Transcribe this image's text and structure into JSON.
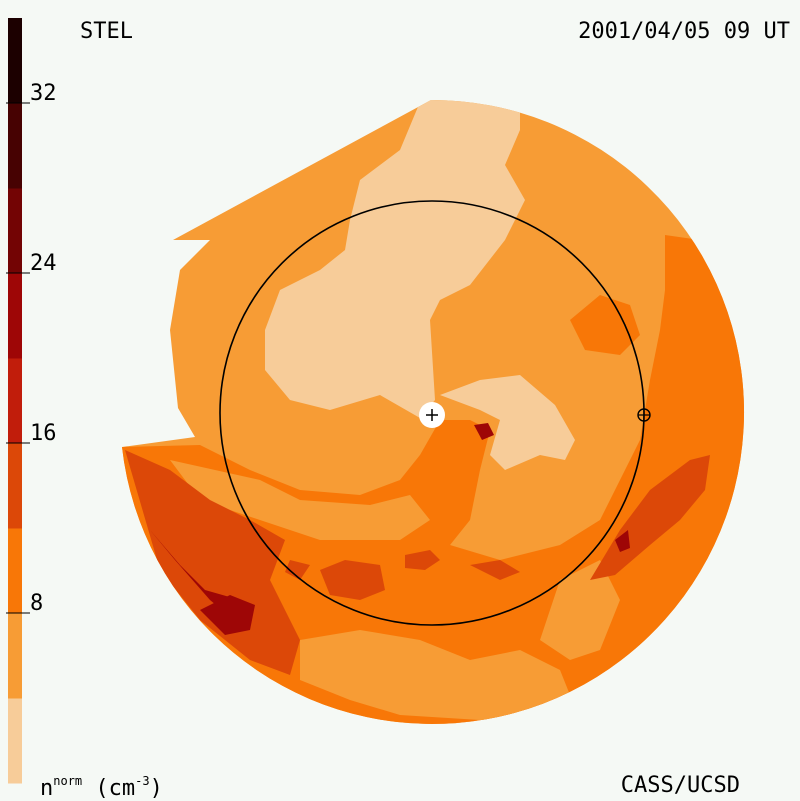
{
  "header": {
    "instrument": "STEL",
    "timestamp": "2001/04/05 09 UT"
  },
  "footer": {
    "credit": "CASS/UCSD"
  },
  "colorbar": {
    "quantity": "n",
    "quantity_superscript": "norm",
    "unit": "(cm",
    "unit_exponent": "-3",
    "unit_close": ")",
    "min": 0,
    "max": 36,
    "level_step": 4,
    "tick_values": [
      8,
      16,
      24,
      32
    ],
    "tick_labels": [
      "8",
      "16",
      "24",
      "32"
    ],
    "level_colors": [
      "#f7cc99",
      "#f79c35",
      "#f87707",
      "#dc4808",
      "#c11d0b",
      "#9e0606",
      "#730404",
      "#470202",
      "#1c0000"
    ]
  },
  "map_data": {
    "type": "heatmap",
    "projection": "fisheye sky map",
    "background_level_color": "#f79c35",
    "observer_marker": "plus",
    "earth_marker": "circled-plus",
    "reference_circle": "circle"
  }
}
